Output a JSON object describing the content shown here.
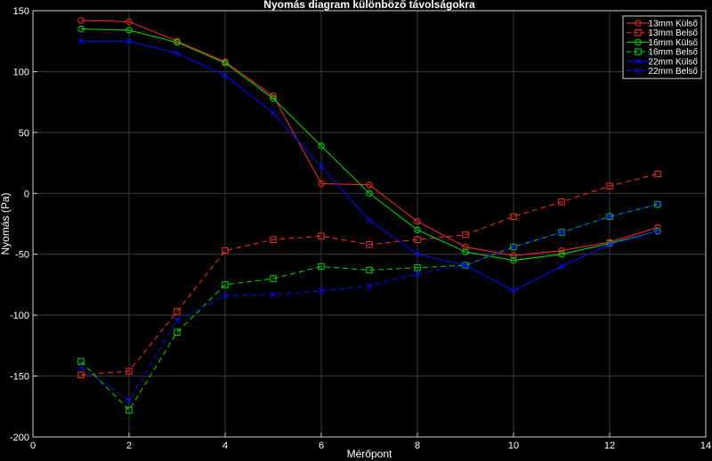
{
  "chart_data": {
    "type": "line",
    "title": "Nyomás diagram különböző távolságokra",
    "xlabel": "Mérőpont",
    "ylabel": "Nyomás (Pa)",
    "xlim": [
      0,
      14
    ],
    "ylim": [
      -200,
      150
    ],
    "xticks": [
      0,
      2,
      4,
      6,
      8,
      10,
      12,
      14
    ],
    "yticks": [
      -200,
      -150,
      -100,
      -50,
      0,
      50,
      100,
      150
    ],
    "grid": true,
    "legend_position": "top-right",
    "x": [
      1,
      2,
      3,
      4,
      5,
      6,
      7,
      8,
      9,
      10,
      11,
      12,
      13
    ],
    "series": [
      {
        "name": "13mm Külső",
        "color": "#ff2a2a",
        "dash": "solid",
        "marker": "circle",
        "values": [
          142,
          141,
          125,
          108,
          80,
          8,
          7,
          -23,
          -44,
          -51,
          -47,
          -40,
          -28
        ]
      },
      {
        "name": "13mm Belső",
        "color": "#ff2a2a",
        "dash": "dashed",
        "marker": "square",
        "values": [
          -149,
          -146,
          -97,
          -47,
          -38,
          -35,
          -42,
          -38,
          -34,
          -19,
          -7,
          6,
          16
        ]
      },
      {
        "name": "16mm Külső",
        "color": "#00dd00",
        "dash": "solid",
        "marker": "circle",
        "values": [
          135,
          134,
          124,
          107,
          78,
          39,
          0,
          -30,
          -48,
          -55,
          -50,
          -41,
          -31
        ]
      },
      {
        "name": "16mm Belső",
        "color": "#00dd00",
        "dash": "dashed",
        "marker": "square",
        "values": [
          -138,
          -178,
          -114,
          -75,
          -70,
          -60,
          -63,
          -61,
          -59,
          -44,
          -32,
          -19,
          -9
        ]
      },
      {
        "name": "22mm Külső",
        "color": "#0a0aff",
        "dash": "solid",
        "marker": "x",
        "values": [
          125,
          125,
          115,
          97,
          66,
          22,
          -22,
          -50,
          -59,
          -80,
          -60,
          -42,
          -31
        ]
      },
      {
        "name": "22mm Belső",
        "color": "#0a0aff",
        "dash": "dashed",
        "marker": "x",
        "values": [
          -143,
          -170,
          -104,
          -84,
          -83,
          -80,
          -76,
          -66,
          -59,
          -44,
          -32,
          -19,
          -9
        ]
      }
    ]
  }
}
